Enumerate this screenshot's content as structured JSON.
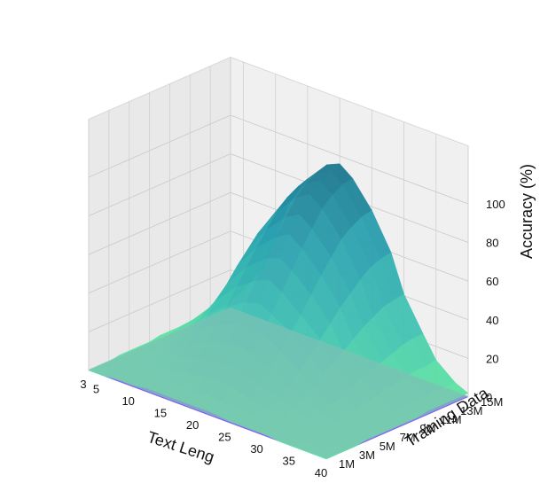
{
  "chart_data": {
    "type": "surface3d",
    "title": "",
    "xlabel": "Text Leng",
    "ylabel": "Training Data",
    "zlabel": "Accuracy (%)",
    "xlim": [
      3,
      40
    ],
    "ylim": [
      1,
      15
    ],
    "zlim": [
      0,
      100
    ],
    "x_ticks": [
      "3",
      "5",
      "10",
      "15",
      "20",
      "25",
      "30",
      "35",
      "40"
    ],
    "y_ticks": [
      "1M",
      "3M",
      "5M",
      "7M",
      "9M",
      "11M",
      "13M",
      "15M"
    ],
    "z_ticks": [
      "0",
      "20",
      "40",
      "60",
      "80",
      "100"
    ],
    "grid": true,
    "colormap": [
      "#62e6a0",
      "#3fc2b4",
      "#2aa0b0",
      "#176e88"
    ],
    "base_plane_color": "#6a3cf5",
    "floor_plane_color": "#7ec4b4",
    "peak": {
      "x": 20,
      "y": 15,
      "z": 96
    },
    "grid_x": [
      3,
      5,
      8,
      10,
      12,
      15,
      18,
      20,
      22,
      25,
      28,
      30,
      33,
      35,
      38,
      40
    ],
    "grid_y": [
      1,
      2,
      3,
      4,
      5,
      6,
      7,
      8,
      9,
      10,
      11,
      12,
      13,
      14,
      15
    ],
    "accuracy": [
      [
        0,
        0,
        1,
        1,
        2,
        2,
        2,
        2,
        2,
        1,
        1,
        1,
        0,
        0,
        0,
        0
      ],
      [
        0,
        1,
        2,
        3,
        4,
        5,
        5,
        6,
        5,
        4,
        3,
        2,
        1,
        1,
        0,
        0
      ],
      [
        0,
        1,
        3,
        5,
        7,
        9,
        10,
        11,
        10,
        8,
        6,
        4,
        2,
        1,
        1,
        0
      ],
      [
        1,
        2,
        5,
        8,
        11,
        14,
        16,
        17,
        16,
        13,
        10,
        7,
        4,
        2,
        1,
        0
      ],
      [
        1,
        3,
        7,
        11,
        15,
        20,
        23,
        25,
        23,
        19,
        14,
        10,
        6,
        3,
        1,
        1
      ],
      [
        1,
        4,
        9,
        14,
        20,
        27,
        31,
        33,
        31,
        26,
        19,
        13,
        8,
        4,
        2,
        1
      ],
      [
        1,
        5,
        11,
        18,
        26,
        34,
        40,
        42,
        39,
        33,
        25,
        17,
        10,
        5,
        2,
        1
      ],
      [
        2,
        6,
        14,
        22,
        32,
        42,
        49,
        52,
        48,
        40,
        31,
        21,
        13,
        6,
        3,
        1
      ],
      [
        2,
        7,
        16,
        26,
        38,
        50,
        58,
        61,
        57,
        48,
        37,
        25,
        15,
        8,
        3,
        1
      ],
      [
        2,
        8,
        19,
        31,
        45,
        58,
        67,
        71,
        66,
        56,
        43,
        29,
        17,
        9,
        4,
        1
      ],
      [
        2,
        9,
        21,
        35,
        51,
        65,
        75,
        79,
        74,
        63,
        48,
        33,
        19,
        10,
        4,
        2
      ],
      [
        2,
        10,
        23,
        39,
        57,
        72,
        83,
        87,
        82,
        70,
        53,
        36,
        21,
        11,
        4,
        2
      ],
      [
        3,
        11,
        25,
        42,
        61,
        77,
        88,
        92,
        87,
        74,
        57,
        39,
        23,
        12,
        5,
        2
      ],
      [
        3,
        11,
        26,
        44,
        64,
        80,
        91,
        95,
        90,
        77,
        59,
        40,
        24,
        12,
        5,
        2
      ],
      [
        3,
        12,
        27,
        45,
        65,
        82,
        93,
        96,
        91,
        78,
        60,
        41,
        24,
        13,
        5,
        2
      ]
    ]
  }
}
